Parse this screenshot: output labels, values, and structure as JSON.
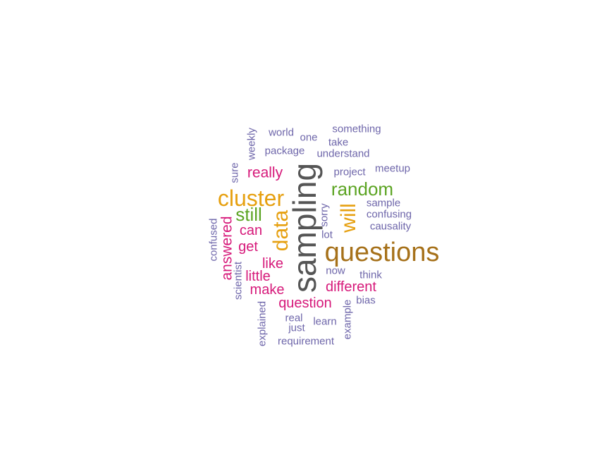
{
  "wordcloud": {
    "words": {
      "sampling": "sampling",
      "questions": "questions",
      "cluster": "cluster",
      "random": "random",
      "data": "data",
      "will": "will",
      "still": "still",
      "answered": "answered",
      "really": "really",
      "can": "can",
      "get": "get",
      "like": "like",
      "little": "little",
      "make": "make",
      "different": "different",
      "question": "question",
      "world": "world",
      "one": "one",
      "something": "something",
      "take": "take",
      "weekly": "weekly",
      "package": "package",
      "understand": "understand",
      "project": "project",
      "meetup": "meetup",
      "sure": "sure",
      "sample": "sample",
      "confusing": "confusing",
      "causality": "causality",
      "sorry": "sorry",
      "lot": "lot",
      "confused": "confused",
      "scientist": "scientist",
      "now": "now",
      "think": "think",
      "bias": "bias",
      "explained": "explained",
      "real": "real",
      "just": "just",
      "learn": "learn",
      "example": "example",
      "requirement": "requirement"
    },
    "colors": {
      "gray": "#555555",
      "brown": "#a6711a",
      "orange": "#e6a010",
      "green": "#5ca423",
      "pink": "#d6197a",
      "purple": "#6e66aa"
    }
  }
}
